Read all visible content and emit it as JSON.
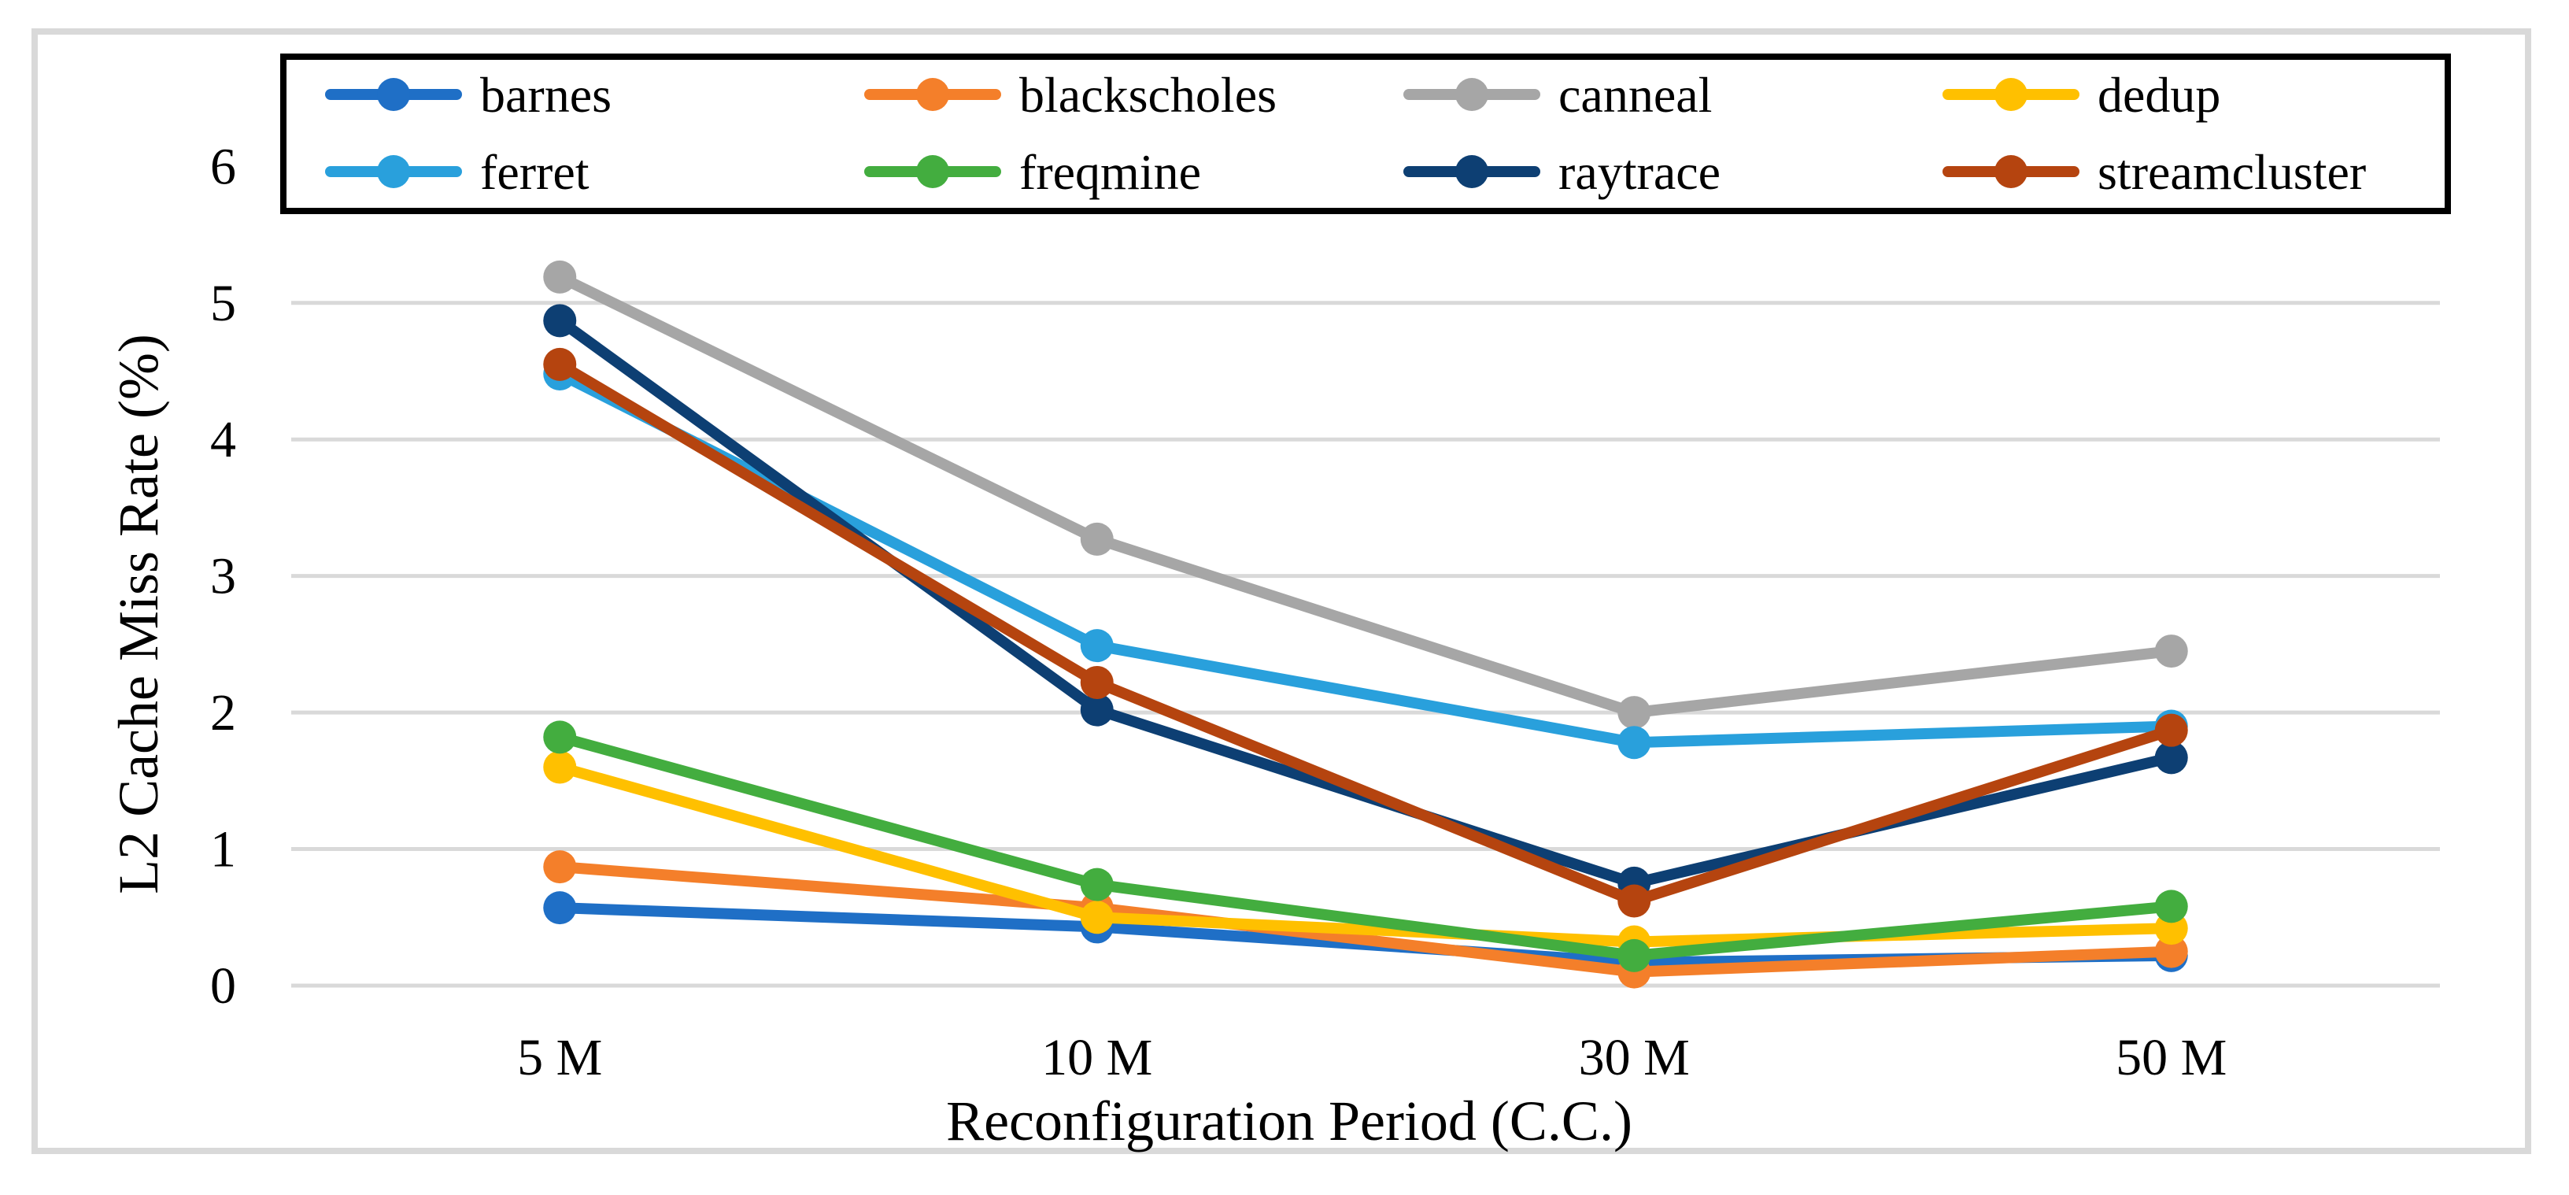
{
  "chart_data": {
    "type": "line",
    "title": "",
    "xlabel": "Reconfiguration Period (C.C.)",
    "ylabel": "L2 Cache Miss Rate (%)",
    "categories": [
      "5 M",
      "10 M",
      "30 M",
      "50 M"
    ],
    "ylim": [
      0,
      6
    ],
    "yticks": [
      "0",
      "1",
      "2",
      "3",
      "4",
      "5",
      "6"
    ],
    "grid": true,
    "legend_position": "top",
    "series": [
      {
        "name": "barnes",
        "color": "#1f6fc6",
        "values": [
          0.57,
          0.43,
          0.17,
          0.22
        ]
      },
      {
        "name": "blackscholes",
        "color": "#f47f2a",
        "values": [
          0.87,
          0.57,
          0.1,
          0.25
        ]
      },
      {
        "name": "canneal",
        "color": "#a6a6a6",
        "values": [
          5.19,
          3.27,
          2.0,
          2.45
        ]
      },
      {
        "name": "dedup",
        "color": "#ffc000",
        "values": [
          1.6,
          0.5,
          0.32,
          0.42
        ]
      },
      {
        "name": "ferret",
        "color": "#29a0dc",
        "values": [
          4.48,
          2.49,
          1.78,
          1.9
        ]
      },
      {
        "name": "freqmine",
        "color": "#43ad3f",
        "values": [
          1.82,
          0.74,
          0.22,
          0.58
        ]
      },
      {
        "name": "raytrace",
        "color": "#0d3f73",
        "values": [
          4.87,
          2.02,
          0.75,
          1.67
        ]
      },
      {
        "name": "streamcluster",
        "color": "#b5440f",
        "values": [
          4.55,
          2.22,
          0.62,
          1.87
        ]
      }
    ]
  }
}
